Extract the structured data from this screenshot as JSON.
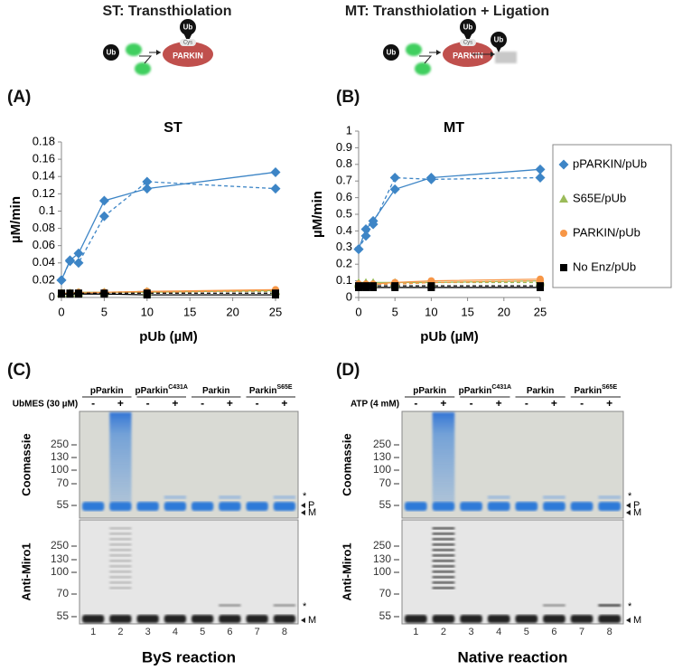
{
  "schemes": [
    {
      "title": "ST: Transthiolation",
      "ub_free": "Ub",
      "ub_bound": "Ub",
      "cys": "Cys",
      "enzyme": "PARKIN"
    },
    {
      "title": "MT: Transthiolation + Ligation",
      "ub_free": "Ub",
      "ub_bound": "Ub",
      "cys": "Cys",
      "enzyme": "PARKIN",
      "ub_product": "Ub"
    }
  ],
  "chart_data": [
    {
      "type": "line",
      "panel": "(A)",
      "title": "ST",
      "xlabel": "pUb (µM)",
      "ylabel": "µM/min",
      "x": [
        0,
        1,
        2,
        5,
        10,
        25
      ],
      "xlim": [
        0,
        25
      ],
      "xticks": [
        0,
        5,
        10,
        15,
        20,
        25
      ],
      "ylim": [
        0,
        0.18
      ],
      "yticks": [
        0,
        0.02,
        0.04,
        0.06,
        0.08,
        0.1,
        0.12,
        0.14,
        0.16,
        0.18
      ],
      "series": [
        {
          "name": "pPARKIN/pUb",
          "color": "#3d85c6",
          "marker": "diamond",
          "values": [
            0.02,
            0.043,
            0.051,
            0.112,
            0.126,
            0.145
          ],
          "dashed_values": [
            0.02,
            0.042,
            0.04,
            0.094,
            0.134,
            0.126
          ]
        },
        {
          "name": "S65E/pUb",
          "color": "#9bbb59",
          "marker": "triangle",
          "values": [
            0.005,
            0.005,
            0.006,
            0.006,
            0.006,
            0.008
          ],
          "dashed_values": [
            0.005,
            0.005,
            0.005,
            0.006,
            0.007,
            0.007
          ]
        },
        {
          "name": "PARKIN/pUb",
          "color": "#f79646",
          "marker": "circle",
          "values": [
            0.005,
            0.005,
            0.005,
            0.006,
            0.007,
            0.009
          ],
          "dashed_values": [
            0.005,
            0.005,
            0.006,
            0.006,
            0.006,
            0.008
          ]
        },
        {
          "name": "No Enz/pUb",
          "color": "#000000",
          "marker": "square",
          "values": [
            0.004,
            0.004,
            0.004,
            0.004,
            0.003,
            0.003
          ],
          "dashed_values": [
            0.005,
            0.005,
            0.005,
            0.005,
            0.005,
            0.005
          ]
        }
      ]
    },
    {
      "type": "line",
      "panel": "(B)",
      "title": "MT",
      "xlabel": "pUb (µM)",
      "ylabel": "µM/min",
      "legend": "right",
      "x": [
        0,
        1,
        2,
        5,
        10,
        25
      ],
      "xlim": [
        0,
        25
      ],
      "xticks": [
        0,
        5,
        10,
        15,
        20,
        25
      ],
      "ylim": [
        0,
        1
      ],
      "yticks": [
        0,
        0.1,
        0.2,
        0.3,
        0.4,
        0.5,
        0.6,
        0.7,
        0.8,
        0.9,
        1
      ],
      "series": [
        {
          "name": "pPARKIN/pUb",
          "color": "#3d85c6",
          "marker": "diamond",
          "values": [
            0.29,
            0.41,
            0.46,
            0.65,
            0.72,
            0.77
          ],
          "dashed_values": [
            0.29,
            0.37,
            0.44,
            0.72,
            0.71,
            0.72
          ]
        },
        {
          "name": "S65E/pUb",
          "color": "#9bbb59",
          "marker": "triangle",
          "values": [
            0.09,
            0.09,
            0.09,
            0.09,
            0.09,
            0.1
          ],
          "dashed_values": [
            0.08,
            0.08,
            0.08,
            0.08,
            0.09,
            0.09
          ]
        },
        {
          "name": "PARKIN/pUb",
          "color": "#f79646",
          "marker": "circle",
          "values": [
            0.08,
            0.08,
            0.08,
            0.09,
            0.1,
            0.11
          ],
          "dashed_values": [
            0.08,
            0.08,
            0.08,
            0.08,
            0.09,
            0.1
          ]
        },
        {
          "name": "No Enz/pUb",
          "color": "#000000",
          "marker": "square",
          "values": [
            0.06,
            0.06,
            0.06,
            0.06,
            0.06,
            0.06
          ],
          "dashed_values": [
            0.07,
            0.07,
            0.07,
            0.07,
            0.07,
            0.07
          ]
        }
      ]
    }
  ],
  "gels": [
    {
      "panel": "(C)",
      "treatment": "UbMES (30 µM)",
      "title": "ByS reaction",
      "groups": [
        {
          "name": "pParkin"
        },
        {
          "name": "pParkin",
          "superscript": "C431A"
        },
        {
          "name": "Parkin"
        },
        {
          "name": "Parkin",
          "superscript": "S65E"
        }
      ],
      "signs": [
        "-",
        "+",
        "-",
        "+",
        "-",
        "+",
        "-",
        "+"
      ],
      "lanes": [
        "1",
        "2",
        "3",
        "4",
        "5",
        "6",
        "7",
        "8"
      ],
      "blots": [
        {
          "stain": "Coomassie",
          "mw": [
            "250",
            "130",
            "100",
            "70",
            "55"
          ],
          "markers": [
            "*",
            "P",
            "M"
          ]
        },
        {
          "stain": "Anti-Miro1",
          "mw": [
            "250",
            "130",
            "100",
            "70",
            "55"
          ],
          "markers": [
            "*",
            "M"
          ]
        }
      ]
    },
    {
      "panel": "(D)",
      "treatment": "ATP (4 mM)",
      "title": "Native reaction",
      "groups": [
        {
          "name": "pParkin"
        },
        {
          "name": "pParkin",
          "superscript": "C431A"
        },
        {
          "name": "Parkin"
        },
        {
          "name": "Parkin",
          "superscript": "S65E"
        }
      ],
      "signs": [
        "-",
        "+",
        "-",
        "+",
        "-",
        "+",
        "-",
        "+"
      ],
      "lanes": [
        "1",
        "2",
        "3",
        "4",
        "5",
        "6",
        "7",
        "8"
      ],
      "blots": [
        {
          "stain": "Coomassie",
          "mw": [
            "250",
            "130",
            "100",
            "70",
            "55"
          ],
          "markers": [
            "*",
            "P",
            "M"
          ]
        },
        {
          "stain": "Anti-Miro1",
          "mw": [
            "250",
            "130",
            "100",
            "70",
            "55"
          ],
          "markers": [
            "*",
            "M"
          ]
        }
      ]
    }
  ]
}
